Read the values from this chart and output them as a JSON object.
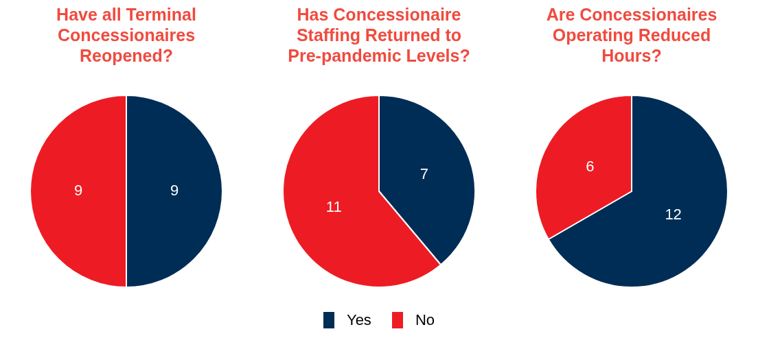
{
  "chart_data": [
    {
      "type": "pie",
      "title": "Have all Terminal Concessionaires Reopened?",
      "categories": [
        null,
        null
      ],
      "values": [
        9,
        9
      ],
      "colors": [
        "#002d56",
        "#ed1c24"
      ],
      "data_labels": true
    },
    {
      "type": "pie",
      "title": "Has Concessionaire Staffing Returned to Pre-pandemic Levels?",
      "categories": [
        "Yes",
        "No"
      ],
      "values": [
        7,
        11
      ],
      "colors": [
        "#002d56",
        "#ed1c24"
      ],
      "data_labels": true,
      "legend": "bottom"
    },
    {
      "type": "pie",
      "title": "Are Concessionaires Operating Reduced Hours?",
      "categories": [
        null,
        null
      ],
      "values": [
        12,
        6
      ],
      "colors": [
        "#002d56",
        "#ed1c24"
      ],
      "data_labels": true
    }
  ]
}
